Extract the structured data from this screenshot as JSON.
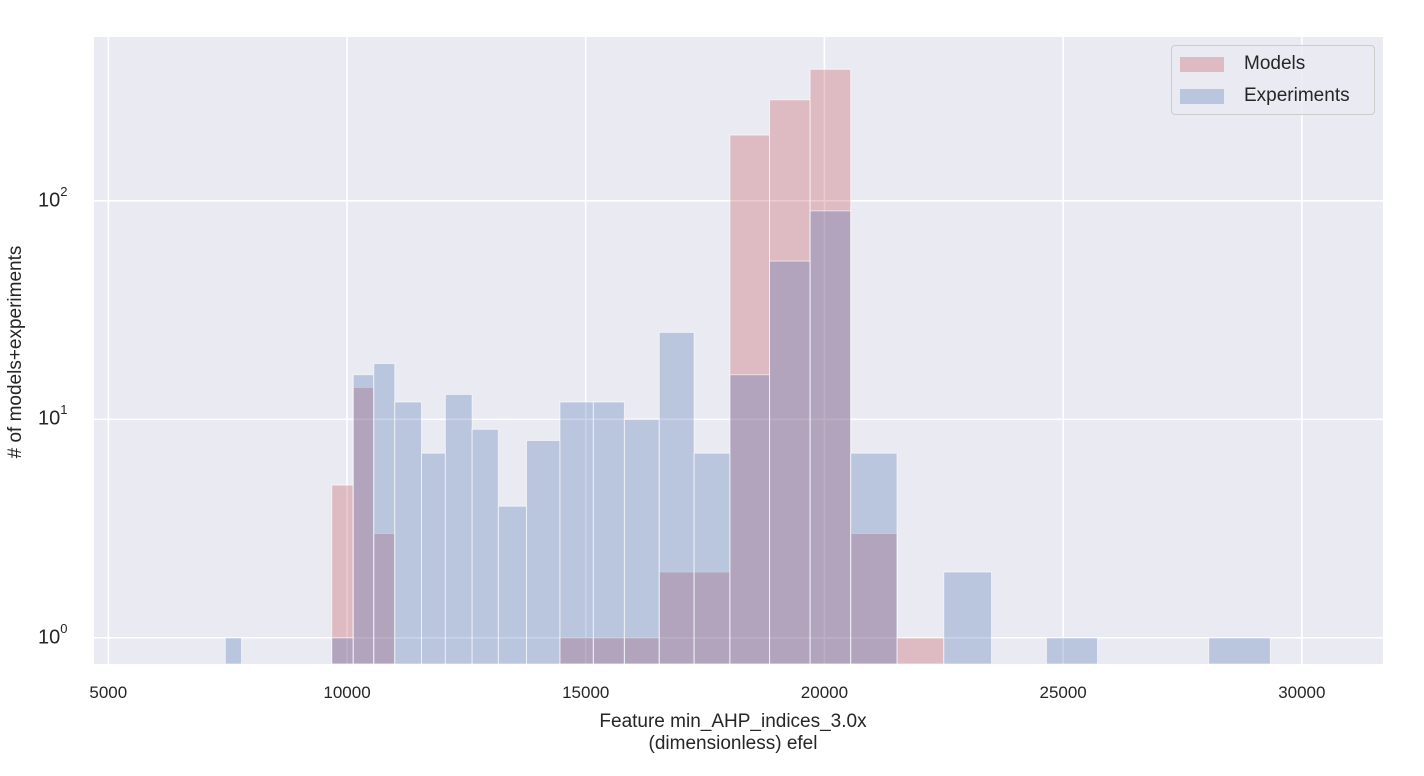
{
  "chart_data": {
    "type": "bar",
    "xlabel_line1": "Feature min_AHP_indices_3.0x",
    "xlabel_line2": "(dimensionless) efel",
    "ylabel": "# of models+experiments",
    "yscale": "log",
    "xlim": [
      4700,
      31700
    ],
    "ylim_log10": [
      -0.12,
      2.75
    ],
    "xticks": [
      5000,
      10000,
      15000,
      20000,
      25000,
      30000
    ],
    "yticks": [
      {
        "value": 1,
        "base": "10",
        "exp": "0"
      },
      {
        "value": 10,
        "base": "10",
        "exp": "1"
      },
      {
        "value": 100,
        "base": "10",
        "exp": "2"
      }
    ],
    "grid": true,
    "legend_position": "top-right",
    "series": [
      {
        "name": "Models",
        "color": "#c44e52",
        "bins": [
          {
            "x0": 9680,
            "x1": 10130,
            "count": 5
          },
          {
            "x0": 10130,
            "x1": 10560,
            "count": 14
          },
          {
            "x0": 10560,
            "x1": 11000,
            "count": 3
          },
          {
            "x0": 14460,
            "x1": 15160,
            "count": 1
          },
          {
            "x0": 15160,
            "x1": 15810,
            "count": 1
          },
          {
            "x0": 15810,
            "x1": 16540,
            "count": 1
          },
          {
            "x0": 16540,
            "x1": 17270,
            "count": 2
          },
          {
            "x0": 17270,
            "x1": 18020,
            "count": 2
          },
          {
            "x0": 18020,
            "x1": 18850,
            "count": 200
          },
          {
            "x0": 18850,
            "x1": 19700,
            "count": 290
          },
          {
            "x0": 19700,
            "x1": 20550,
            "count": 400
          },
          {
            "x0": 20550,
            "x1": 21520,
            "count": 3
          },
          {
            "x0": 21520,
            "x1": 22500,
            "count": 1
          }
        ]
      },
      {
        "name": "Experiments",
        "color": "#4c72b0",
        "bins": [
          {
            "x0": 7450,
            "x1": 7790,
            "count": 1
          },
          {
            "x0": 9680,
            "x1": 10130,
            "count": 1
          },
          {
            "x0": 10130,
            "x1": 10560,
            "count": 16
          },
          {
            "x0": 10560,
            "x1": 11000,
            "count": 18
          },
          {
            "x0": 11000,
            "x1": 11560,
            "count": 12
          },
          {
            "x0": 11560,
            "x1": 12060,
            "count": 7
          },
          {
            "x0": 12060,
            "x1": 12620,
            "count": 13
          },
          {
            "x0": 12620,
            "x1": 13170,
            "count": 9
          },
          {
            "x0": 13170,
            "x1": 13760,
            "count": 4
          },
          {
            "x0": 13760,
            "x1": 14460,
            "count": 8
          },
          {
            "x0": 14460,
            "x1": 15160,
            "count": 12
          },
          {
            "x0": 15160,
            "x1": 15810,
            "count": 12
          },
          {
            "x0": 15810,
            "x1": 16540,
            "count": 10
          },
          {
            "x0": 16540,
            "x1": 17270,
            "count": 25
          },
          {
            "x0": 17270,
            "x1": 18020,
            "count": 7
          },
          {
            "x0": 18020,
            "x1": 18850,
            "count": 16
          },
          {
            "x0": 18850,
            "x1": 19700,
            "count": 53
          },
          {
            "x0": 19700,
            "x1": 20550,
            "count": 90
          },
          {
            "x0": 20550,
            "x1": 21520,
            "count": 7
          },
          {
            "x0": 22500,
            "x1": 23500,
            "count": 2
          },
          {
            "x0": 24650,
            "x1": 25720,
            "count": 1
          },
          {
            "x0": 28050,
            "x1": 29340,
            "count": 1
          }
        ]
      }
    ]
  }
}
